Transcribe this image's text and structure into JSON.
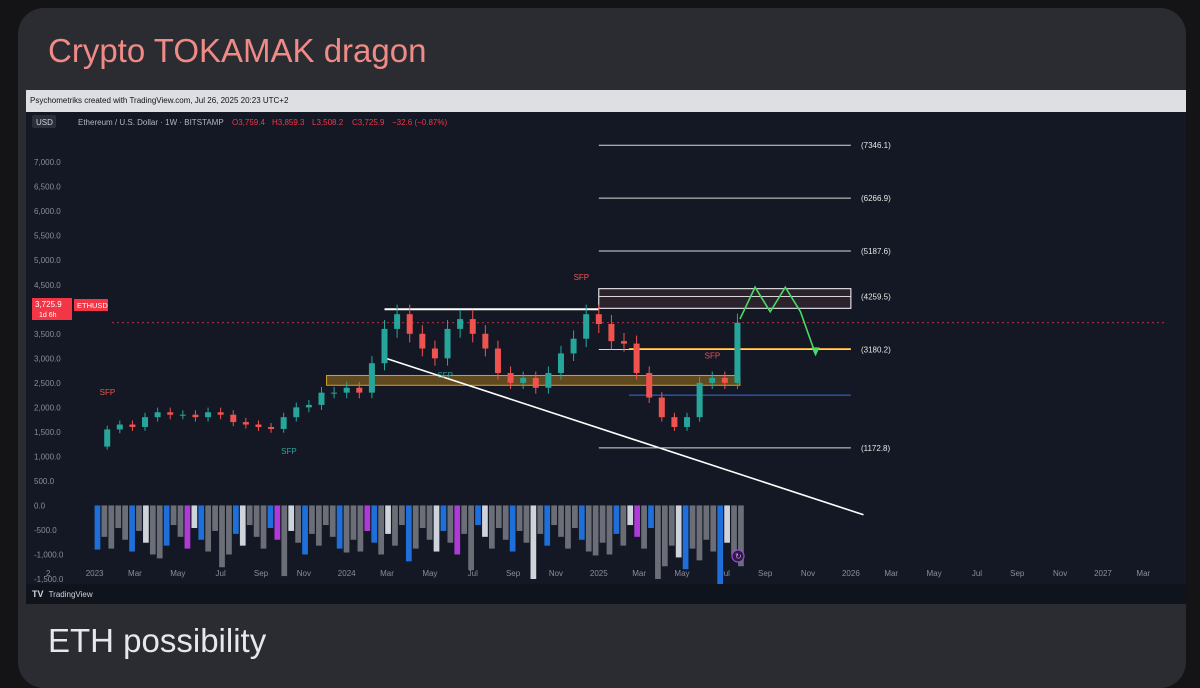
{
  "card": {
    "title": "Crypto TOKAMAK dragon",
    "subtitle": "ETH possibility"
  },
  "chart_meta": {
    "credit": "Psychometriks created with TradingView.com, Jul 26, 2025 20:23 UTC+2",
    "symbol_info": "Ethereum / U.S. Dollar · 1W · BITSTAMP",
    "ohlc": {
      "o": "O3,759.4",
      "h": "H3,859.3",
      "l": "L3,508.2",
      "c": "C3,725.9",
      "chg": "−32.6 (−0.87%)"
    },
    "currency_badge": "USD",
    "price_tag": "3,725.9",
    "price_tag_sub": "1d 6h",
    "ticker_tag": "ETHUSD",
    "footer_logo": "TV",
    "footer_brand": "TradingView",
    "corner_label": "2"
  },
  "chart_data": {
    "type": "line",
    "title": "",
    "xlabel": "",
    "ylabel": "",
    "ylim": [
      -1500,
      7350
    ],
    "y_ticks": [
      "7,000.0",
      "6,500.0",
      "6,000.0",
      "5,500.0",
      "5,000.0",
      "4,500.0",
      "4,000.0",
      "3,500.0",
      "3,000.0",
      "2,500.0",
      "2,000.0",
      "1,500.0",
      "1,000.0",
      "500.0",
      "0.0",
      "-500.0",
      "-1,000.0",
      "-1,500.0"
    ],
    "x_ticks": [
      "2023",
      "Mar",
      "May",
      "Jul",
      "Sep",
      "Nov",
      "2024",
      "Mar",
      "May",
      "Jul",
      "Sep",
      "Nov",
      "2025",
      "Mar",
      "May",
      "Jul",
      "Sep",
      "Nov",
      "2026",
      "Mar",
      "May",
      "Jul",
      "Sep",
      "Nov",
      "2027",
      "Mar"
    ],
    "x_tick_dates": [
      2023.0,
      2023.16,
      2023.33,
      2023.5,
      2023.66,
      2023.83,
      2024.0,
      2024.16,
      2024.33,
      2024.5,
      2024.66,
      2024.83,
      2025.0,
      2025.16,
      2025.33,
      2025.5,
      2025.66,
      2025.83,
      2026.0,
      2026.16,
      2026.33,
      2026.5,
      2026.66,
      2026.83,
      2027.0,
      2027.16
    ],
    "series": [
      {
        "name": "",
        "x": [
          2023.0,
          2023.05,
          2023.1,
          2023.15,
          2023.2,
          2023.25,
          2023.3,
          2023.35,
          2023.4,
          2023.45,
          2023.5,
          2023.55,
          2023.6,
          2023.65,
          2023.7,
          2023.75,
          2023.8,
          2023.85,
          2023.9,
          2023.95,
          2024.0,
          2024.05,
          2024.1,
          2024.15,
          2024.2,
          2024.25,
          2024.3,
          2024.35,
          2024.4,
          2024.45,
          2024.5,
          2024.55,
          2024.6,
          2024.65,
          2024.7,
          2024.75,
          2024.8,
          2024.85,
          2024.9,
          2024.95,
          2025.0,
          2025.05,
          2025.1,
          2025.15,
          2025.2,
          2025.25,
          2025.3,
          2025.35,
          2025.4,
          2025.45,
          2025.5,
          2025.55
        ],
        "values": [
          1200,
          1550,
          1650,
          1600,
          1800,
          1900,
          1850,
          1850,
          1800,
          1900,
          1850,
          1700,
          1650,
          1600,
          1560,
          1800,
          2000,
          2050,
          2300,
          2300,
          2400,
          2300,
          2900,
          3600,
          3900,
          3500,
          3200,
          3000,
          3600,
          3800,
          3500,
          3200,
          2700,
          2500,
          2600,
          2400,
          2700,
          3100,
          3400,
          3900,
          3700,
          3350,
          3300,
          2700,
          2200,
          1800,
          1600,
          1800,
          2500,
          2600,
          2500,
          3725.9
        ]
      }
    ],
    "levels": [
      7346.1,
      6266.9,
      5187.6,
      4259.5,
      3180.2,
      1172.8
    ],
    "level_labels": [
      "(7346.1)",
      "(6266.9)",
      "(5187.6)",
      "(4259.5)",
      "(3180.2)",
      "(1172.8)"
    ],
    "projection": {
      "x": [
        2025.56,
        2025.62,
        2025.68,
        2025.74,
        2025.8,
        2025.86
      ],
      "values": [
        3800,
        4450,
        3950,
        4450,
        3950,
        3080
      ]
    },
    "annotations": [
      "SFP",
      "SFP",
      "SFP",
      "SFP",
      "SFP"
    ],
    "volume": {
      "zero_value": 0,
      "bars_count": 94
    },
    "grid": false,
    "legend": "none"
  }
}
